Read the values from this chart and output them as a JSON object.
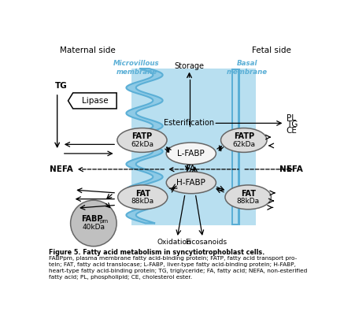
{
  "bg_color": "#ffffff",
  "mc_light": "#b8dff0",
  "mc_mid": "#8ecae6",
  "mc_dark": "#5bafd6",
  "basal_color": "#5bafd6",
  "ellipse_fill_gray": "#dcdcdc",
  "ellipse_fill_white": "#f5f5f5",
  "fabppm_fill": "#c0c0c0",
  "ellipse_edge": "#666666",
  "text_color": "#000000",
  "arrow_color": "#000000",
  "dashed_color": "#555555",
  "maternal_label": "Maternal side",
  "fetal_label": "Fetal side",
  "microv_label": "Microvillous\nmembrane",
  "basal_label": "Basal\nmembrane",
  "storage_label": "Storage",
  "esterification_label": "Esterification",
  "oxidation_label": "Oxidation",
  "eicosanoids_label": "Eicosanoids",
  "tg_label": "TG",
  "nefa_label": "NEFA",
  "fa_label": "FA",
  "pl_label": "PL",
  "tg2_label": "TG",
  "ce_label": "CE",
  "lipase_label": "Lipase",
  "fatp_label": "FATP",
  "fatp_sub": "62kDa",
  "lfabp_label": "L-FABP",
  "hfabp_label": "H-FABP",
  "fat_label": "FAT",
  "fat_sub": "88kDa",
  "fabppm_label": "FABPpm",
  "fabppm_sub": "40kDa",
  "fig_title": "Figure 5. Fatty acid metabolism in syncytiotrophoblast cells.",
  "fig_caption": "FABPpm, plasma membrane fatty acid-binding protein; FATP, fatty acid transport pro-\ntein; FAT, fatty acid translocase; L-FABP, liver-type fatty acid-binding protein; H-FABP,\nheart-type fatty acid-binding protein; TG, triglyceride; FA, fatty acid; NEFA, non-esterified\nfatty acid; PL, phospholipid; CE, cholesterol ester."
}
